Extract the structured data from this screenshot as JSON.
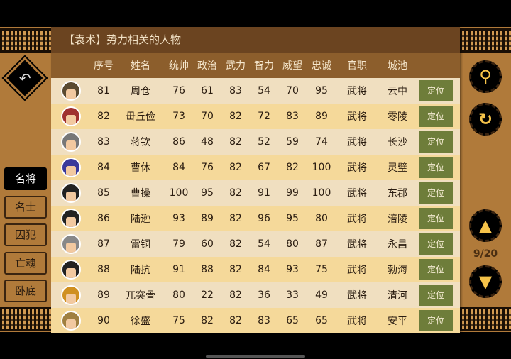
{
  "title": "【袁术】势力相关的人物",
  "headers": [
    "",
    "序号",
    "姓名",
    "统帅",
    "政治",
    "武力",
    "智力",
    "威望",
    "忠诚",
    "官职",
    "城池",
    ""
  ],
  "locate_label": "定位",
  "rows": [
    {
      "id": "81",
      "name": "周仓",
      "ts": "76",
      "zz": "61",
      "wl": "83",
      "zl": "54",
      "ww": "70",
      "zc": "95",
      "post": "武将",
      "city": "云中",
      "color": "#5a4a30"
    },
    {
      "id": "82",
      "name": "毌丘俭",
      "ts": "73",
      "zz": "70",
      "wl": "82",
      "zl": "72",
      "ww": "83",
      "zc": "89",
      "post": "武将",
      "city": "零陵",
      "color": "#a03030"
    },
    {
      "id": "83",
      "name": "蒋钦",
      "ts": "86",
      "zz": "48",
      "wl": "82",
      "zl": "52",
      "ww": "59",
      "zc": "74",
      "post": "武将",
      "city": "长沙",
      "color": "#777777"
    },
    {
      "id": "84",
      "name": "曹休",
      "ts": "84",
      "zz": "76",
      "wl": "82",
      "zl": "67",
      "ww": "82",
      "zc": "100",
      "post": "武将",
      "city": "灵璧",
      "color": "#3a3a9a"
    },
    {
      "id": "85",
      "name": "曹操",
      "ts": "100",
      "zz": "95",
      "wl": "82",
      "zl": "91",
      "ww": "99",
      "zc": "100",
      "post": "武将",
      "city": "东郡",
      "color": "#222222"
    },
    {
      "id": "86",
      "name": "陆逊",
      "ts": "93",
      "zz": "89",
      "wl": "82",
      "zl": "96",
      "ww": "95",
      "zc": "80",
      "post": "武将",
      "city": "涪陵",
      "color": "#222222"
    },
    {
      "id": "87",
      "name": "雷铜",
      "ts": "79",
      "zz": "60",
      "wl": "82",
      "zl": "54",
      "ww": "80",
      "zc": "87",
      "post": "武将",
      "city": "永昌",
      "color": "#888888"
    },
    {
      "id": "88",
      "name": "陆抗",
      "ts": "91",
      "zz": "88",
      "wl": "82",
      "zl": "84",
      "ww": "93",
      "zc": "75",
      "post": "武将",
      "city": "勃海",
      "color": "#222222"
    },
    {
      "id": "89",
      "name": "兀突骨",
      "ts": "80",
      "zz": "22",
      "wl": "82",
      "zl": "36",
      "ww": "33",
      "zc": "49",
      "post": "武将",
      "city": "清河",
      "color": "#d09020"
    },
    {
      "id": "90",
      "name": "徐盛",
      "ts": "75",
      "zz": "82",
      "wl": "82",
      "zl": "83",
      "ww": "65",
      "zc": "65",
      "post": "武将",
      "city": "安平",
      "color": "#a08040"
    }
  ],
  "tabs": [
    "名将",
    "名士",
    "囚犯",
    "亡魂",
    "卧底"
  ],
  "active_tab": "名将",
  "page": "9/20",
  "icons": {
    "back": "back-arrow-icon",
    "search": "search-icon",
    "refresh": "refresh-icon",
    "up": "triangle-up-icon",
    "down": "triangle-down-icon"
  },
  "colors": {
    "background": "#b07a3a",
    "title_bar": "#6b4420",
    "header": "#8c5e2c",
    "locate_button": "#6e7d3a",
    "icon_gold": "#f5c34a"
  }
}
